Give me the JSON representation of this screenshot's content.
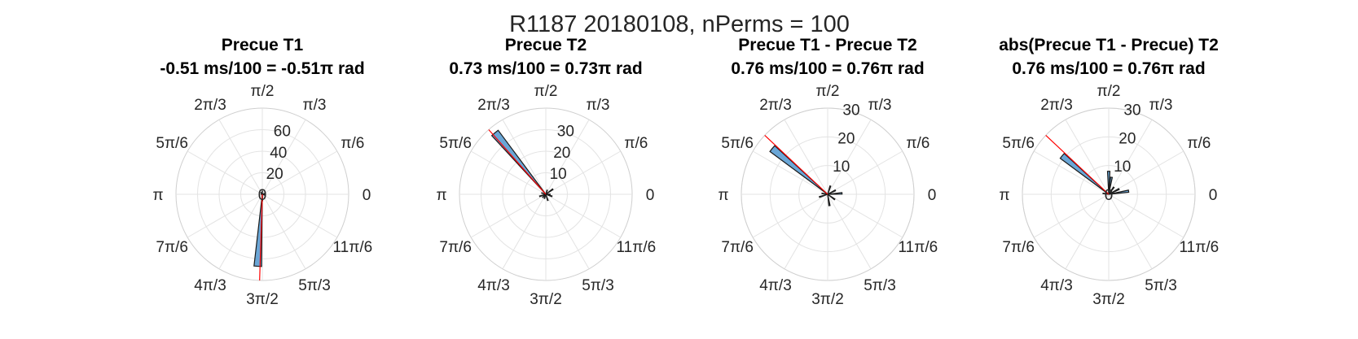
{
  "figure": {
    "title": "R1187 20180108, nPerms = 100"
  },
  "colors": {
    "bar_fill": "#6aa6d6",
    "bar_edge": "#1a1a1a",
    "mean_line": "#ff0000",
    "grid": "#e3e3e3"
  },
  "chart_data": [
    {
      "type": "polar-histogram",
      "title": "Precue T1",
      "subtitle": "-0.51 ms/100 = -0.51π rad",
      "theta_tick_labels": [
        "0",
        "π/6",
        "π/3",
        "π/2",
        "2π/3",
        "5π/6",
        "π",
        "7π/6",
        "4π/3",
        "3π/2",
        "5π/3",
        "11π/6"
      ],
      "r_ticks": [
        0,
        20,
        40,
        60
      ],
      "r_tick_labels": [
        "0",
        "20",
        "40",
        "60"
      ],
      "rlim": [
        0,
        80
      ],
      "mean_angle_pi": -0.51,
      "bins": [
        {
          "angle_pi": 1.48,
          "count": 67
        },
        {
          "angle_pi": 1.5,
          "count": 6
        },
        {
          "angle_pi": 0.5,
          "count": 3
        },
        {
          "angle_pi": 0.7,
          "count": 2
        },
        {
          "angle_pi": 1.9,
          "count": 2
        },
        {
          "angle_pi": 0.1,
          "count": 2
        },
        {
          "angle_pi": 1.0,
          "count": 1
        }
      ]
    },
    {
      "type": "polar-histogram",
      "title": "Precue T2",
      "subtitle": "0.73 ms/100 = 0.73π rad",
      "theta_tick_labels": [
        "0",
        "π/6",
        "π/3",
        "π/2",
        "2π/3",
        "5π/6",
        "π",
        "7π/6",
        "4π/3",
        "3π/2",
        "5π/3",
        "11π/6"
      ],
      "r_ticks": [
        0,
        10,
        20,
        30
      ],
      "r_tick_labels": [
        "",
        "10",
        "20",
        "30"
      ],
      "rlim": [
        0,
        40
      ],
      "mean_angle_pi": 0.73,
      "bins": [
        {
          "angle_pi": 0.72,
          "count": 37
        },
        {
          "angle_pi": 0.2,
          "count": 4
        },
        {
          "angle_pi": 1.1,
          "count": 3
        },
        {
          "angle_pi": 1.6,
          "count": 3
        },
        {
          "angle_pi": 0.4,
          "count": 2
        },
        {
          "angle_pi": 1.4,
          "count": 2
        },
        {
          "angle_pi": 1.9,
          "count": 3
        },
        {
          "angle_pi": 0.9,
          "count": 2
        },
        {
          "angle_pi": 0.0,
          "count": 2
        },
        {
          "angle_pi": 1.25,
          "count": 2
        }
      ]
    },
    {
      "type": "polar-histogram",
      "title": "Precue T1 - Precue T2",
      "subtitle": "0.76 ms/100 = 0.76π rad",
      "theta_tick_labels": [
        "0",
        "π/6",
        "π/3",
        "π/2",
        "2π/3",
        "5π/6",
        "π",
        "7π/6",
        "4π/3",
        "3π/2",
        "5π/3",
        "11π/6"
      ],
      "r_ticks": [
        0,
        10,
        20,
        30
      ],
      "r_tick_labels": [
        "",
        "10",
        "20",
        "30"
      ],
      "rlim": [
        0,
        30
      ],
      "mean_angle_pi": 0.76,
      "bins": [
        {
          "angle_pi": 0.78,
          "count": 25
        },
        {
          "angle_pi": 0.02,
          "count": 5
        },
        {
          "angle_pi": 0.15,
          "count": 3
        },
        {
          "angle_pi": 0.4,
          "count": 3
        },
        {
          "angle_pi": 1.1,
          "count": 3
        },
        {
          "angle_pi": 1.55,
          "count": 4
        },
        {
          "angle_pi": 1.8,
          "count": 3
        },
        {
          "angle_pi": 0.95,
          "count": 2
        }
      ]
    },
    {
      "type": "polar-histogram",
      "title": "abs(Precue T1 - Precue) T2",
      "subtitle": "0.76 ms/100 = 0.76π rad",
      "theta_tick_labels": [
        "0",
        "π/6",
        "π/3",
        "π/2",
        "2π/3",
        "5π/6",
        "π",
        "7π/6",
        "4π/3",
        "3π/2",
        "5π/3",
        "11π/6"
      ],
      "r_ticks": [
        0,
        10,
        20,
        30
      ],
      "r_tick_labels": [
        "0",
        "10",
        "20",
        "30"
      ],
      "rlim": [
        0,
        30
      ],
      "mean_angle_pi": 0.76,
      "bins": [
        {
          "angle_pi": 0.78,
          "count": 21
        },
        {
          "angle_pi": 0.5,
          "count": 8
        },
        {
          "angle_pi": 0.45,
          "count": 6
        },
        {
          "angle_pi": 0.3,
          "count": 3
        },
        {
          "angle_pi": 0.05,
          "count": 7
        },
        {
          "angle_pi": 0.15,
          "count": 4
        },
        {
          "angle_pi": 0.95,
          "count": 2
        }
      ]
    }
  ]
}
